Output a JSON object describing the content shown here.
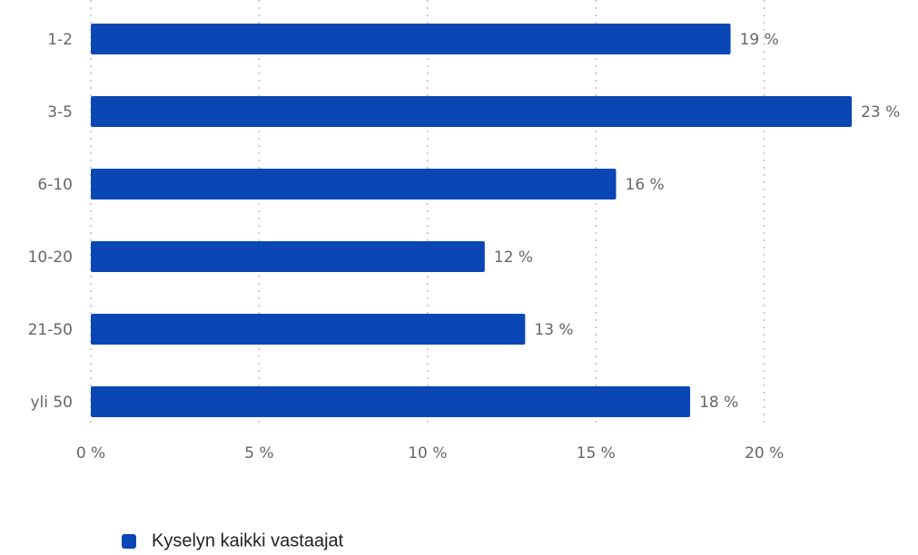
{
  "chart_data": {
    "type": "hbar",
    "categories": [
      "1-2",
      "3-5",
      "6-10",
      "10-20",
      "21-50",
      "yli 50"
    ],
    "series": [
      {
        "name": "Kyselyn kaikki vastaajat",
        "color": "#0a47b5",
        "values": [
          19.0,
          22.6,
          15.6,
          11.7,
          12.9,
          17.8
        ],
        "value_labels": [
          "19 %",
          "23 %",
          "16 %",
          "12 %",
          "13 %",
          "18 %"
        ]
      }
    ],
    "xlim": [
      0,
      24
    ],
    "xticks": [
      {
        "value": 0,
        "label": "0 %"
      },
      {
        "value": 5,
        "label": "5 %"
      },
      {
        "value": 10,
        "label": "10 %"
      },
      {
        "value": 15,
        "label": "15 %"
      },
      {
        "value": 20,
        "label": "20 %"
      }
    ],
    "grid": true,
    "legend": "bottom"
  }
}
